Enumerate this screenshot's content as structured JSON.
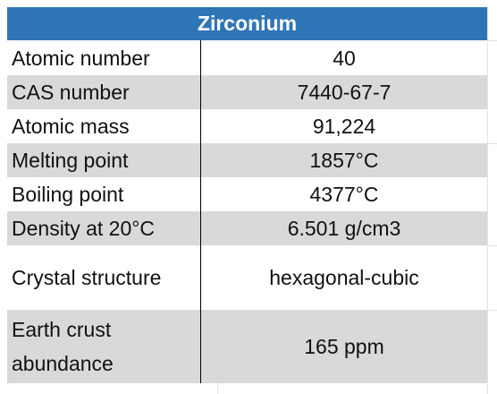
{
  "title": "Zirconium",
  "table": {
    "rows": [
      [
        "Atomic number",
        "40"
      ],
      [
        "CAS number",
        "7440-67-7"
      ],
      [
        "Atomic mass",
        "91,224"
      ],
      [
        "Melting point",
        "1857°C"
      ],
      [
        "Boiling point",
        "4377°C"
      ],
      [
        "Density at 20°C",
        "6.501 g/cm3"
      ],
      [
        "Crystal structure",
        "hexagonal-cubic"
      ],
      [
        "Earth crust abundance",
        "165 ppm"
      ]
    ]
  }
}
